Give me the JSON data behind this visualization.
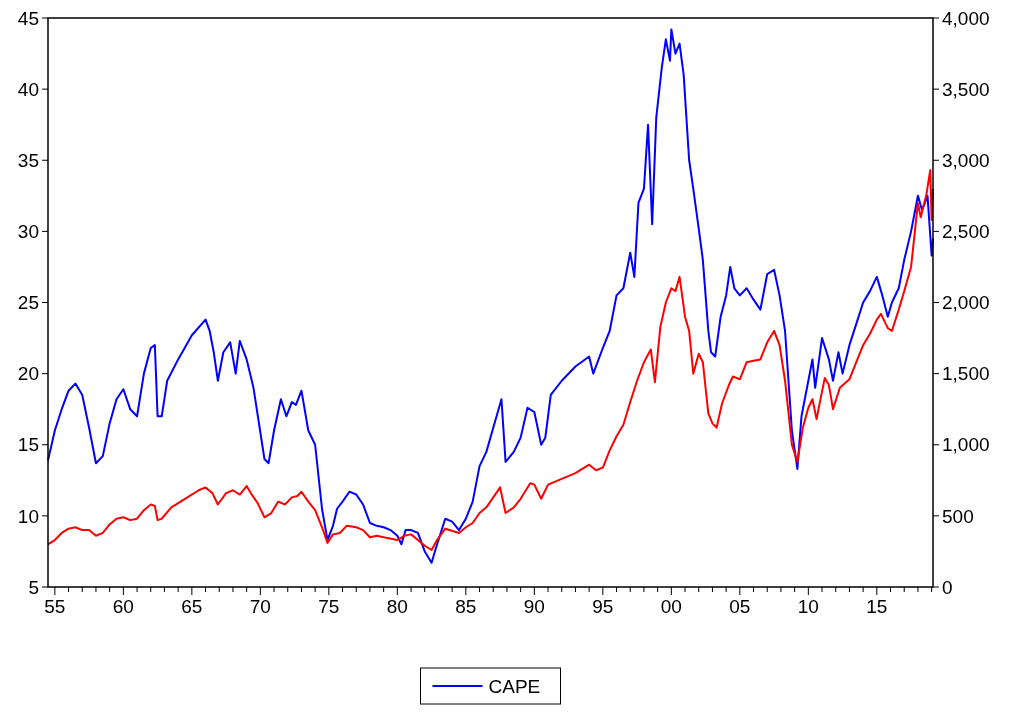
{
  "chart_data": {
    "type": "line",
    "xlim": [
      1954.5,
      2019.1
    ],
    "xticks": [
      {
        "value": 1955,
        "label": "55"
      },
      {
        "value": 1956,
        "label": null
      },
      {
        "value": 1957,
        "label": null
      },
      {
        "value": 1958,
        "label": null
      },
      {
        "value": 1959,
        "label": null
      },
      {
        "value": 1960,
        "label": "60"
      },
      {
        "value": 1961,
        "label": null
      },
      {
        "value": 1962,
        "label": null
      },
      {
        "value": 1963,
        "label": null
      },
      {
        "value": 1964,
        "label": null
      },
      {
        "value": 1965,
        "label": "65"
      },
      {
        "value": 1966,
        "label": null
      },
      {
        "value": 1967,
        "label": null
      },
      {
        "value": 1968,
        "label": null
      },
      {
        "value": 1969,
        "label": null
      },
      {
        "value": 1970,
        "label": "70"
      },
      {
        "value": 1971,
        "label": null
      },
      {
        "value": 1972,
        "label": null
      },
      {
        "value": 1973,
        "label": null
      },
      {
        "value": 1974,
        "label": null
      },
      {
        "value": 1975,
        "label": "75"
      },
      {
        "value": 1976,
        "label": null
      },
      {
        "value": 1977,
        "label": null
      },
      {
        "value": 1978,
        "label": null
      },
      {
        "value": 1979,
        "label": null
      },
      {
        "value": 1980,
        "label": "80"
      },
      {
        "value": 1981,
        "label": null
      },
      {
        "value": 1982,
        "label": null
      },
      {
        "value": 1983,
        "label": null
      },
      {
        "value": 1984,
        "label": null
      },
      {
        "value": 1985,
        "label": "85"
      },
      {
        "value": 1986,
        "label": null
      },
      {
        "value": 1987,
        "label": null
      },
      {
        "value": 1988,
        "label": null
      },
      {
        "value": 1989,
        "label": null
      },
      {
        "value": 1990,
        "label": "90"
      },
      {
        "value": 1991,
        "label": null
      },
      {
        "value": 1992,
        "label": null
      },
      {
        "value": 1993,
        "label": null
      },
      {
        "value": 1994,
        "label": null
      },
      {
        "value": 1995,
        "label": "95"
      },
      {
        "value": 1996,
        "label": null
      },
      {
        "value": 1997,
        "label": null
      },
      {
        "value": 1998,
        "label": null
      },
      {
        "value": 1999,
        "label": null
      },
      {
        "value": 2000,
        "label": "00"
      },
      {
        "value": 2001,
        "label": null
      },
      {
        "value": 2002,
        "label": null
      },
      {
        "value": 2003,
        "label": null
      },
      {
        "value": 2004,
        "label": null
      },
      {
        "value": 2005,
        "label": "05"
      },
      {
        "value": 2006,
        "label": null
      },
      {
        "value": 2007,
        "label": null
      },
      {
        "value": 2008,
        "label": null
      },
      {
        "value": 2009,
        "label": null
      },
      {
        "value": 2010,
        "label": "10"
      },
      {
        "value": 2011,
        "label": null
      },
      {
        "value": 2012,
        "label": null
      },
      {
        "value": 2013,
        "label": null
      },
      {
        "value": 2014,
        "label": null
      },
      {
        "value": 2015,
        "label": "15"
      },
      {
        "value": 2016,
        "label": null
      },
      {
        "value": 2017,
        "label": null
      },
      {
        "value": 2018,
        "label": null
      },
      {
        "value": 2019,
        "label": null
      }
    ],
    "ylim": [
      5,
      45
    ],
    "yticks": [
      5,
      10,
      15,
      20,
      25,
      30,
      35,
      40,
      45
    ],
    "y2lim": [
      0,
      4000
    ],
    "y2ticks": [
      0,
      500,
      {
        "value": 1000,
        "label": "1,000"
      },
      {
        "value": 1500,
        "label": "1,500"
      },
      {
        "value": 2000,
        "label": "2,000"
      },
      {
        "value": 2500,
        "label": "2,500"
      },
      {
        "value": 3000,
        "label": "3,000"
      },
      {
        "value": 3500,
        "label": "3,500"
      },
      {
        "value": 4000,
        "label": "4,000"
      }
    ],
    "grid": false,
    "legend": "bottom",
    "line_style": "solid",
    "series": [
      {
        "name": "CAPE",
        "color": "#0000ff",
        "x": [
          1954.5,
          1955.0,
          1955.5,
          1956.0,
          1956.5,
          1957.0,
          1957.5,
          1958.0,
          1958.5,
          1959.0,
          1959.5,
          1960.0,
          1960.5,
          1961.0,
          1961.5,
          1962.0,
          1962.3,
          1962.5,
          1962.8,
          1963.2,
          1964.0,
          1965.0,
          1966.0,
          1966.3,
          1966.6,
          1966.9,
          1967.3,
          1967.8,
          1968.2,
          1968.5,
          1969.0,
          1969.5,
          1970.3,
          1970.6,
          1971.0,
          1971.5,
          1971.9,
          1972.3,
          1972.6,
          1973.0,
          1973.5,
          1974.0,
          1974.5,
          1974.9,
          1975.3,
          1975.6,
          1976.0,
          1976.5,
          1977.0,
          1977.5,
          1978.0,
          1978.5,
          1979.0,
          1979.5,
          1980.0,
          1980.3,
          1980.6,
          1981.0,
          1981.5,
          1982.0,
          1982.5,
          1982.9,
          1983.5,
          1984.0,
          1984.5,
          1985.0,
          1985.5,
          1986.0,
          1986.5,
          1987.0,
          1987.6,
          1987.9,
          1988.5,
          1989.0,
          1989.5,
          1990.0,
          1990.5,
          1990.8,
          1991.2,
          1992.0,
          1993.0,
          1994.0,
          1994.3,
          1995.0,
          1995.5,
          1996.0,
          1996.5,
          1997.0,
          1997.3,
          1997.6,
          1998.0,
          1998.3,
          1998.6,
          1998.9,
          1999.3,
          1999.6,
          1999.9,
          2000.0,
          2000.3,
          2000.6,
          2000.9,
          2001.3,
          2001.6,
          2002.0,
          2002.3,
          2002.7,
          2002.9,
          2003.2,
          2003.6,
          2004.0,
          2004.3,
          2004.6,
          2005.0,
          2005.5,
          2006.0,
          2006.5,
          2007.0,
          2007.5,
          2007.9,
          2008.3,
          2008.8,
          2009.2,
          2009.5,
          2010.0,
          2010.3,
          2010.5,
          2011.0,
          2011.5,
          2011.8,
          2012.2,
          2012.5,
          2013.0,
          2013.5,
          2014.0,
          2014.5,
          2015.0,
          2015.4,
          2015.8,
          2016.1,
          2016.6,
          2017.0,
          2017.5,
          2018.0,
          2018.3,
          2018.7,
          2019.0,
          2019.1
        ],
        "values": [
          13.9,
          16.0,
          17.5,
          18.8,
          19.3,
          18.5,
          16.2,
          13.7,
          14.2,
          16.5,
          18.2,
          18.9,
          17.5,
          17.0,
          20.0,
          21.8,
          22.0,
          17.0,
          17.0,
          19.5,
          21.0,
          22.7,
          23.8,
          23.0,
          21.5,
          19.5,
          21.5,
          22.2,
          20.0,
          22.3,
          21.0,
          19.0,
          14.0,
          13.7,
          16.0,
          18.2,
          17.0,
          18.0,
          17.8,
          18.8,
          16.0,
          15.0,
          10.5,
          8.3,
          9.3,
          10.5,
          11.0,
          11.7,
          11.5,
          10.8,
          9.5,
          9.3,
          9.2,
          9.0,
          8.6,
          8.0,
          9.0,
          9.0,
          8.8,
          7.5,
          6.7,
          8.0,
          9.8,
          9.6,
          9.0,
          9.8,
          11.0,
          13.5,
          14.5,
          16.2,
          18.2,
          13.8,
          14.5,
          15.5,
          17.6,
          17.3,
          15.0,
          15.5,
          18.5,
          19.5,
          20.5,
          21.2,
          20.0,
          21.8,
          23.0,
          25.5,
          26.0,
          28.5,
          26.8,
          32.0,
          33.0,
          37.5,
          30.5,
          38.0,
          41.5,
          43.5,
          42.0,
          44.2,
          42.5,
          43.2,
          41.0,
          35.0,
          33.0,
          30.2,
          28.0,
          23.0,
          21.5,
          21.2,
          24.0,
          25.5,
          27.5,
          26.0,
          25.5,
          26.0,
          25.2,
          24.5,
          27.0,
          27.3,
          25.5,
          23.0,
          16.0,
          13.3,
          17.0,
          19.5,
          21.0,
          19.0,
          22.5,
          21.0,
          19.5,
          21.5,
          20.0,
          22.0,
          23.5,
          25.0,
          25.8,
          26.8,
          25.5,
          24.0,
          25.0,
          26.0,
          28.0,
          30.0,
          32.5,
          31.5,
          32.5,
          28.3,
          29.5
        ]
      },
      {
        "color": "#ff0000",
        "axis": "y2",
        "x": [
          1954.5,
          1955.0,
          1955.5,
          1956.0,
          1956.5,
          1957.0,
          1957.5,
          1958.0,
          1958.5,
          1959.0,
          1959.5,
          1960.0,
          1960.5,
          1961.0,
          1961.5,
          1962.0,
          1962.3,
          1962.5,
          1962.8,
          1963.5,
          1964.5,
          1965.5,
          1966.0,
          1966.5,
          1966.9,
          1967.5,
          1968.0,
          1968.5,
          1969.0,
          1969.3,
          1969.8,
          1970.3,
          1970.8,
          1971.3,
          1971.8,
          1972.3,
          1972.7,
          1973.0,
          1973.5,
          1974.0,
          1974.5,
          1974.9,
          1975.3,
          1975.8,
          1976.3,
          1977.0,
          1977.5,
          1978.0,
          1978.5,
          1979.0,
          1980.0,
          1980.5,
          1981.0,
          1981.5,
          1982.0,
          1982.5,
          1982.9,
          1983.5,
          1984.5,
          1985.0,
          1985.5,
          1986.0,
          1986.5,
          1987.5,
          1987.9,
          1988.5,
          1989.0,
          1989.7,
          1990.0,
          1990.5,
          1991.0,
          1992.0,
          1993.0,
          1994.0,
          1994.5,
          1995.0,
          1995.5,
          1996.0,
          1996.5,
          1997.0,
          1997.5,
          1998.0,
          1998.5,
          1998.8,
          1999.2,
          1999.6,
          2000.0,
          2000.3,
          2000.6,
          2001.0,
          2001.3,
          2001.6,
          2002.0,
          2002.3,
          2002.7,
          2003.0,
          2003.3,
          2003.7,
          2004.2,
          2004.5,
          2005.0,
          2005.5,
          2006.0,
          2006.5,
          2007.0,
          2007.5,
          2007.9,
          2008.3,
          2008.8,
          2009.2,
          2009.6,
          2010.0,
          2010.3,
          2010.6,
          2011.2,
          2011.5,
          2011.8,
          2012.3,
          2013.0,
          2013.5,
          2014.0,
          2014.5,
          2015.0,
          2015.3,
          2015.8,
          2016.1,
          2016.6,
          2017.0,
          2017.5,
          2018.0,
          2018.2,
          2018.6,
          2018.9,
          2019.0,
          2019.1
        ],
        "values": [
          300,
          330,
          380,
          410,
          420,
          400,
          400,
          360,
          380,
          440,
          480,
          490,
          470,
          480,
          540,
          580,
          570,
          470,
          480,
          560,
          620,
          680,
          700,
          660,
          580,
          660,
          680,
          650,
          710,
          660,
          590,
          490,
          520,
          600,
          580,
          630,
          640,
          670,
          600,
          540,
          420,
          310,
          370,
          380,
          430,
          420,
          400,
          350,
          360,
          350,
          330,
          360,
          370,
          330,
          290,
          260,
          330,
          410,
          380,
          420,
          450,
          520,
          560,
          700,
          520,
          560,
          620,
          730,
          720,
          620,
          720,
          760,
          800,
          860,
          820,
          840,
          960,
          1060,
          1140,
          1300,
          1450,
          1580,
          1670,
          1440,
          1830,
          2000,
          2100,
          2080,
          2180,
          1900,
          1800,
          1500,
          1640,
          1580,
          1220,
          1150,
          1120,
          1290,
          1420,
          1480,
          1460,
          1580,
          1590,
          1600,
          1720,
          1800,
          1700,
          1450,
          1000,
          880,
          1120,
          1260,
          1320,
          1180,
          1470,
          1420,
          1250,
          1400,
          1460,
          1580,
          1700,
          1780,
          1880,
          1920,
          1820,
          1800,
          1950,
          2080,
          2250,
          2700,
          2600,
          2750,
          2930,
          2580,
          2800
        ]
      }
    ]
  }
}
